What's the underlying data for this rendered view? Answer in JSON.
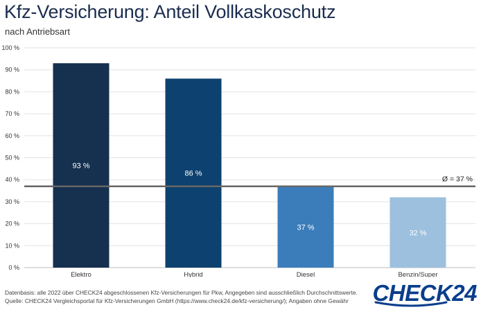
{
  "chart_data": {
    "type": "bar",
    "title": "Kfz-Versicherung: Anteil Vollkaskoschutz",
    "subtitle": "nach Antriebsart",
    "categories": [
      "Elektro",
      "Hybrid",
      "Diesel",
      "Benzin/Super"
    ],
    "values": [
      93,
      86,
      37,
      32
    ],
    "value_labels": [
      "93 %",
      "86 %",
      "37 %",
      "32 %"
    ],
    "bar_colors": [
      "#16304f",
      "#0d416f",
      "#3b7dbb",
      "#9cc0de"
    ],
    "ylim": [
      0,
      100
    ],
    "yticks": [
      0,
      10,
      20,
      30,
      40,
      50,
      60,
      70,
      80,
      90,
      100
    ],
    "ytick_labels": [
      "0 %",
      "10 %",
      "20 %",
      "30 %",
      "40 %",
      "50 %",
      "60 %",
      "70 %",
      "80 %",
      "90 %",
      "100 %"
    ],
    "average": {
      "value": 37,
      "label": "Ø = 37 %",
      "color": "#666666"
    },
    "grid": true
  },
  "footer": {
    "line1": "Datenbasis: alle 2022 über CHECK24 abgeschlossenen Kfz-Versicherungen für Pkw, Angegeben sind ausschließlich Durchschnittswerte.",
    "line2": "Quelle: CHECK24 Vergleichsportal für Kfz-Versicherungen GmbH (https://www.check24.de/kfz-versicherung/); Angaben ohne Gewähr"
  },
  "logo": {
    "text": "CHECK24",
    "color": "#0a3e8c"
  }
}
